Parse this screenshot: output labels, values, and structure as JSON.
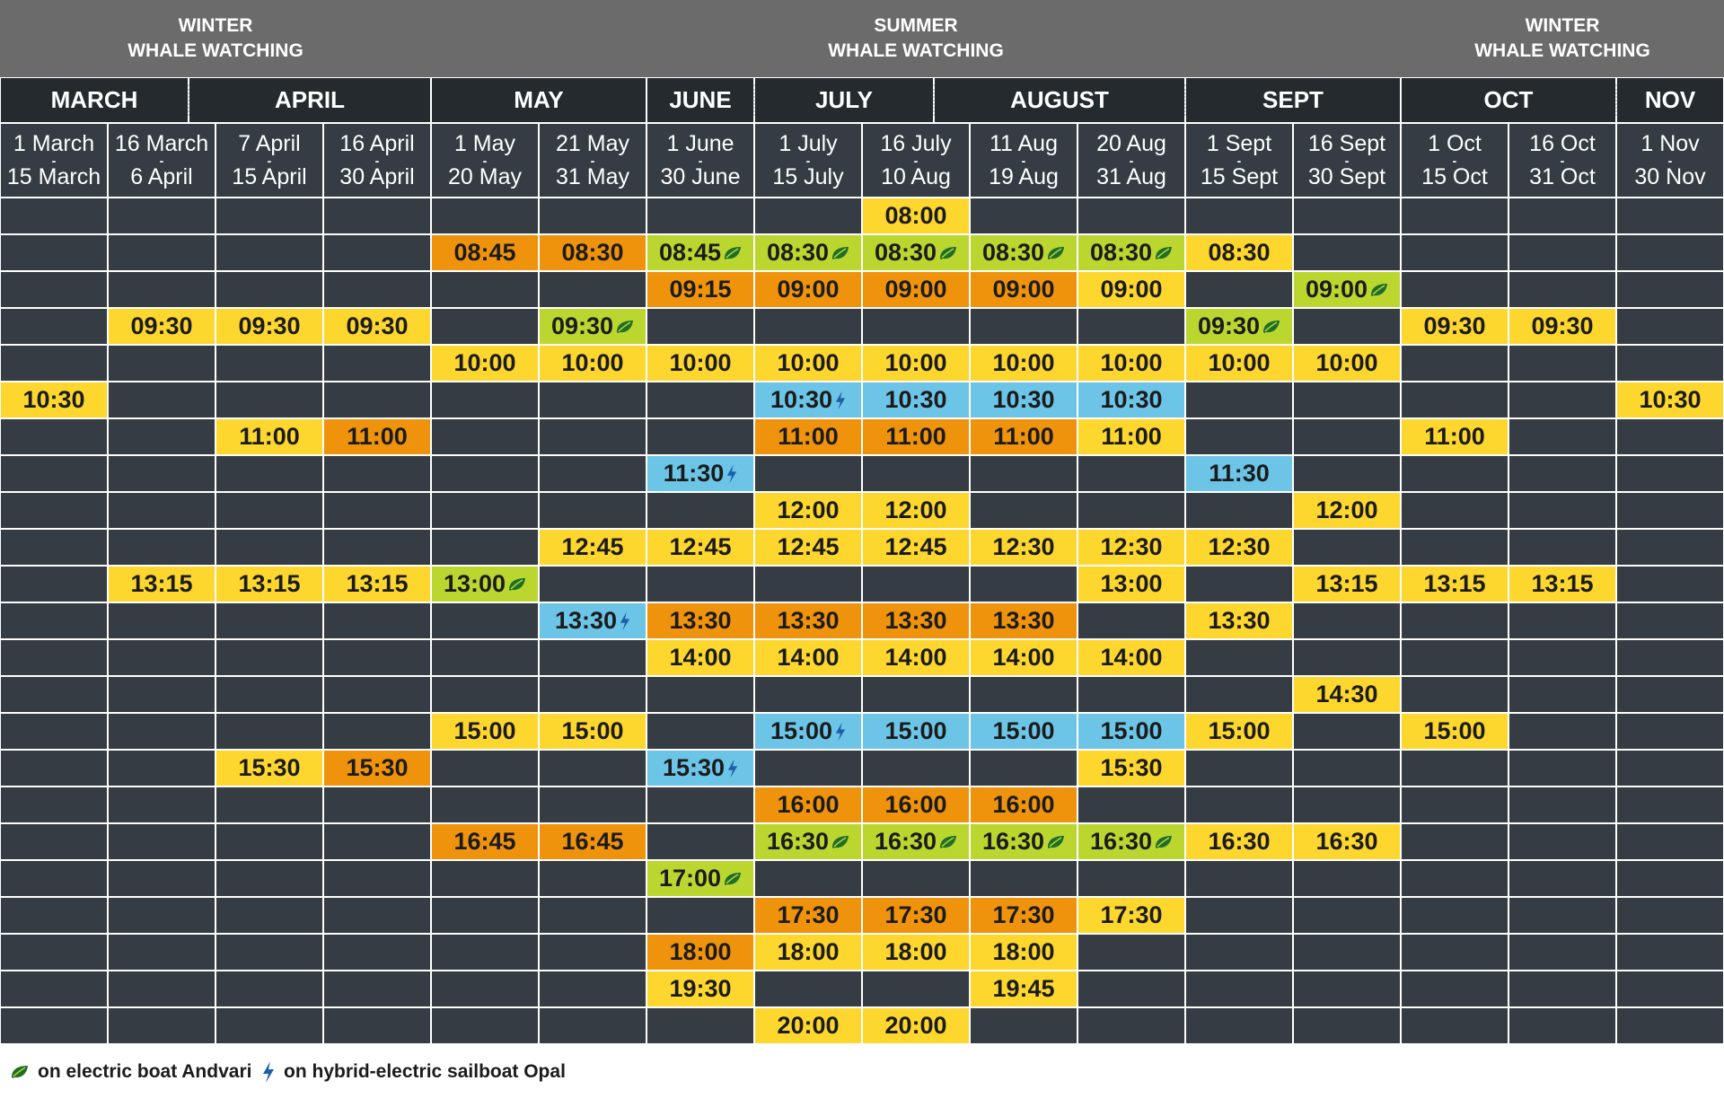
{
  "bands": [
    {
      "lines": [
        "WINTER",
        "WHALE WATCHING"
      ]
    },
    {
      "lines": [
        "SUMMER",
        "WHALE WATCHING"
      ]
    },
    {
      "lines": [
        "WINTER",
        "WHALE WATCHING"
      ]
    }
  ],
  "months": [
    "MARCH",
    "APRIL",
    "MAY",
    "JUNE",
    "JULY",
    "AUGUST",
    "SEPT",
    "OCT",
    "NOV"
  ],
  "periods": [
    {
      "from": "1 March",
      "to": "15 March"
    },
    {
      "from": "16 March",
      "to": "6 April"
    },
    {
      "from": "7 April",
      "to": "15 April"
    },
    {
      "from": "16 April",
      "to": "30 April"
    },
    {
      "from": "1 May",
      "to": "20 May"
    },
    {
      "from": "21 May",
      "to": "31 May"
    },
    {
      "from": "1 June",
      "to": "30 June"
    },
    {
      "from": "1 July",
      "to": "15 July"
    },
    {
      "from": "16 July",
      "to": "10 Aug"
    },
    {
      "from": "11 Aug",
      "to": "19 Aug"
    },
    {
      "from": "20 Aug",
      "to": "31 Aug"
    },
    {
      "from": "1 Sept",
      "to": "15 Sept"
    },
    {
      "from": "16 Sept",
      "to": "30 Sept"
    },
    {
      "from": "1 Oct",
      "to": "15 Oct"
    },
    {
      "from": "16 Oct",
      "to": "31 Oct"
    },
    {
      "from": "1 Nov",
      "to": "30 Nov"
    }
  ],
  "colors": {
    "yellow": "#fdd62e",
    "orange": "#f0930c",
    "green": "#bcd630",
    "blue": "#6cc4e6",
    "empty": "#363c43"
  },
  "rows": [
    [
      null,
      null,
      null,
      null,
      null,
      null,
      null,
      null,
      {
        "t": "08:00",
        "c": "yellow"
      },
      null,
      null,
      null,
      null,
      null,
      null,
      null
    ],
    [
      null,
      null,
      null,
      null,
      {
        "t": "08:45",
        "c": "orange"
      },
      {
        "t": "08:30",
        "c": "orange"
      },
      {
        "t": "08:45",
        "c": "green",
        "i": "leaf"
      },
      {
        "t": "08:30",
        "c": "green",
        "i": "leaf"
      },
      {
        "t": "08:30",
        "c": "green",
        "i": "leaf"
      },
      {
        "t": "08:30",
        "c": "green",
        "i": "leaf"
      },
      {
        "t": "08:30",
        "c": "green",
        "i": "leaf"
      },
      {
        "t": "08:30",
        "c": "yellow"
      },
      null,
      null,
      null,
      null
    ],
    [
      null,
      null,
      null,
      null,
      null,
      null,
      {
        "t": "09:15",
        "c": "orange"
      },
      {
        "t": "09:00",
        "c": "orange"
      },
      {
        "t": "09:00",
        "c": "orange"
      },
      {
        "t": "09:00",
        "c": "orange"
      },
      {
        "t": "09:00",
        "c": "yellow"
      },
      null,
      {
        "t": "09:00",
        "c": "green",
        "i": "leaf"
      },
      null,
      null,
      null
    ],
    [
      null,
      {
        "t": "09:30",
        "c": "yellow"
      },
      {
        "t": "09:30",
        "c": "yellow"
      },
      {
        "t": "09:30",
        "c": "yellow"
      },
      null,
      {
        "t": "09:30",
        "c": "green",
        "i": "leaf"
      },
      null,
      null,
      null,
      null,
      null,
      {
        "t": "09:30",
        "c": "green",
        "i": "leaf"
      },
      null,
      {
        "t": "09:30",
        "c": "yellow"
      },
      {
        "t": "09:30",
        "c": "yellow"
      },
      null
    ],
    [
      null,
      null,
      null,
      null,
      {
        "t": "10:00",
        "c": "yellow"
      },
      {
        "t": "10:00",
        "c": "yellow"
      },
      {
        "t": "10:00",
        "c": "yellow"
      },
      {
        "t": "10:00",
        "c": "yellow"
      },
      {
        "t": "10:00",
        "c": "yellow"
      },
      {
        "t": "10:00",
        "c": "yellow"
      },
      {
        "t": "10:00",
        "c": "yellow"
      },
      {
        "t": "10:00",
        "c": "yellow"
      },
      {
        "t": "10:00",
        "c": "yellow"
      },
      null,
      null,
      null
    ],
    [
      {
        "t": "10:30",
        "c": "yellow"
      },
      null,
      null,
      null,
      null,
      null,
      null,
      {
        "t": "10:30",
        "c": "blue",
        "i": "bolt"
      },
      {
        "t": "10:30",
        "c": "blue"
      },
      {
        "t": "10:30",
        "c": "blue"
      },
      {
        "t": "10:30",
        "c": "blue"
      },
      null,
      null,
      null,
      null,
      {
        "t": "10:30",
        "c": "yellow"
      }
    ],
    [
      null,
      null,
      {
        "t": "11:00",
        "c": "yellow"
      },
      {
        "t": "11:00",
        "c": "orange"
      },
      null,
      null,
      null,
      {
        "t": "11:00",
        "c": "orange"
      },
      {
        "t": "11:00",
        "c": "orange"
      },
      {
        "t": "11:00",
        "c": "orange"
      },
      {
        "t": "11:00",
        "c": "yellow"
      },
      null,
      null,
      {
        "t": "11:00",
        "c": "yellow"
      },
      null,
      null
    ],
    [
      null,
      null,
      null,
      null,
      null,
      null,
      {
        "t": "11:30",
        "c": "blue",
        "i": "bolt"
      },
      null,
      null,
      null,
      null,
      {
        "t": "11:30",
        "c": "blue"
      },
      null,
      null,
      null,
      null
    ],
    [
      null,
      null,
      null,
      null,
      null,
      null,
      null,
      {
        "t": "12:00",
        "c": "yellow"
      },
      {
        "t": "12:00",
        "c": "yellow"
      },
      null,
      null,
      null,
      {
        "t": "12:00",
        "c": "yellow"
      },
      null,
      null,
      null
    ],
    [
      null,
      null,
      null,
      null,
      null,
      {
        "t": "12:45",
        "c": "yellow"
      },
      {
        "t": "12:45",
        "c": "yellow"
      },
      {
        "t": "12:45",
        "c": "yellow"
      },
      {
        "t": "12:45",
        "c": "yellow"
      },
      {
        "t": "12:30",
        "c": "yellow"
      },
      {
        "t": "12:30",
        "c": "yellow"
      },
      {
        "t": "12:30",
        "c": "yellow"
      },
      null,
      null,
      null,
      null
    ],
    [
      null,
      {
        "t": "13:15",
        "c": "yellow"
      },
      {
        "t": "13:15",
        "c": "yellow"
      },
      {
        "t": "13:15",
        "c": "yellow"
      },
      {
        "t": "13:00",
        "c": "green",
        "i": "leaf"
      },
      null,
      null,
      null,
      null,
      null,
      {
        "t": "13:00",
        "c": "yellow"
      },
      null,
      {
        "t": "13:15",
        "c": "yellow"
      },
      {
        "t": "13:15",
        "c": "yellow"
      },
      {
        "t": "13:15",
        "c": "yellow"
      },
      null
    ],
    [
      null,
      null,
      null,
      null,
      null,
      {
        "t": "13:30",
        "c": "blue",
        "i": "bolt"
      },
      {
        "t": "13:30",
        "c": "orange"
      },
      {
        "t": "13:30",
        "c": "orange"
      },
      {
        "t": "13:30",
        "c": "orange"
      },
      {
        "t": "13:30",
        "c": "orange"
      },
      null,
      {
        "t": "13:30",
        "c": "yellow"
      },
      null,
      null,
      null,
      null
    ],
    [
      null,
      null,
      null,
      null,
      null,
      null,
      {
        "t": "14:00",
        "c": "yellow"
      },
      {
        "t": "14:00",
        "c": "yellow"
      },
      {
        "t": "14:00",
        "c": "yellow"
      },
      {
        "t": "14:00",
        "c": "yellow"
      },
      {
        "t": "14:00",
        "c": "yellow"
      },
      null,
      null,
      null,
      null,
      null
    ],
    [
      null,
      null,
      null,
      null,
      null,
      null,
      null,
      null,
      null,
      null,
      null,
      null,
      {
        "t": "14:30",
        "c": "yellow"
      },
      null,
      null,
      null
    ],
    [
      null,
      null,
      null,
      null,
      {
        "t": "15:00",
        "c": "yellow"
      },
      {
        "t": "15:00",
        "c": "yellow"
      },
      null,
      {
        "t": "15:00",
        "c": "blue",
        "i": "bolt"
      },
      {
        "t": "15:00",
        "c": "blue"
      },
      {
        "t": "15:00",
        "c": "blue"
      },
      {
        "t": "15:00",
        "c": "blue"
      },
      {
        "t": "15:00",
        "c": "yellow"
      },
      null,
      {
        "t": "15:00",
        "c": "yellow"
      },
      null,
      null
    ],
    [
      null,
      null,
      {
        "t": "15:30",
        "c": "yellow"
      },
      {
        "t": "15:30",
        "c": "orange"
      },
      null,
      null,
      {
        "t": "15:30",
        "c": "blue",
        "i": "bolt"
      },
      null,
      null,
      null,
      {
        "t": "15:30",
        "c": "yellow"
      },
      null,
      null,
      null,
      null,
      null
    ],
    [
      null,
      null,
      null,
      null,
      null,
      null,
      null,
      {
        "t": "16:00",
        "c": "orange"
      },
      {
        "t": "16:00",
        "c": "orange"
      },
      {
        "t": "16:00",
        "c": "orange"
      },
      null,
      null,
      null,
      null,
      null,
      null
    ],
    [
      null,
      null,
      null,
      null,
      {
        "t": "16:45",
        "c": "orange"
      },
      {
        "t": "16:45",
        "c": "orange"
      },
      null,
      {
        "t": "16:30",
        "c": "green",
        "i": "leaf"
      },
      {
        "t": "16:30",
        "c": "green",
        "i": "leaf"
      },
      {
        "t": "16:30",
        "c": "green",
        "i": "leaf"
      },
      {
        "t": "16:30",
        "c": "green",
        "i": "leaf"
      },
      {
        "t": "16:30",
        "c": "yellow"
      },
      {
        "t": "16:30",
        "c": "yellow"
      },
      null,
      null,
      null
    ],
    [
      null,
      null,
      null,
      null,
      null,
      null,
      {
        "t": "17:00",
        "c": "green",
        "i": "leaf"
      },
      null,
      null,
      null,
      null,
      null,
      null,
      null,
      null,
      null
    ],
    [
      null,
      null,
      null,
      null,
      null,
      null,
      null,
      {
        "t": "17:30",
        "c": "orange"
      },
      {
        "t": "17:30",
        "c": "orange"
      },
      {
        "t": "17:30",
        "c": "orange"
      },
      {
        "t": "17:30",
        "c": "yellow"
      },
      null,
      null,
      null,
      null,
      null
    ],
    [
      null,
      null,
      null,
      null,
      null,
      null,
      {
        "t": "18:00",
        "c": "orange"
      },
      {
        "t": "18:00",
        "c": "yellow"
      },
      {
        "t": "18:00",
        "c": "yellow"
      },
      {
        "t": "18:00",
        "c": "yellow"
      },
      null,
      null,
      null,
      null,
      null,
      null
    ],
    [
      null,
      null,
      null,
      null,
      null,
      null,
      {
        "t": "19:30",
        "c": "yellow"
      },
      null,
      null,
      {
        "t": "19:45",
        "c": "yellow"
      },
      null,
      null,
      null,
      null,
      null,
      null
    ],
    [
      null,
      null,
      null,
      null,
      null,
      null,
      null,
      {
        "t": "20:00",
        "c": "yellow"
      },
      {
        "t": "20:00",
        "c": "yellow"
      },
      null,
      null,
      null,
      null,
      null,
      null,
      null
    ]
  ],
  "legend": {
    "leaf_text": "on electric boat Andvari",
    "bolt_text": "on hybrid-electric sailboat Opal"
  }
}
